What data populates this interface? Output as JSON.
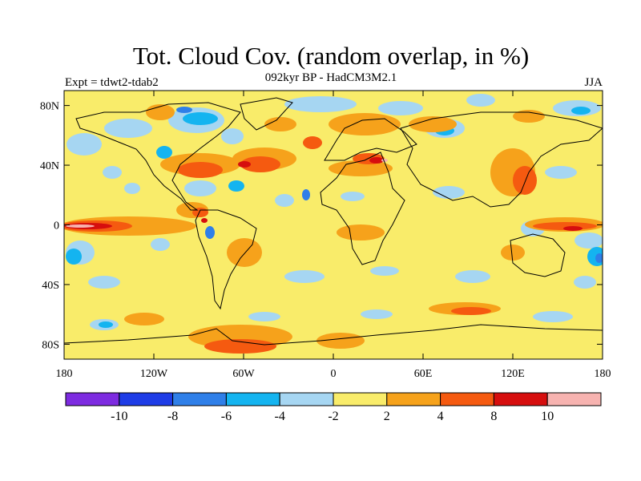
{
  "header": {
    "title": "Tot. Cloud Cov. (random overlap, in %)",
    "subtitle": "092kyr BP - HadCM3M2.1",
    "left_label": "Expt = tdwt2-tdab2",
    "right_label": "JJA"
  },
  "axes": {
    "lat_labels": [
      "80N",
      "40N",
      "0",
      "40S",
      "80S"
    ],
    "lat_values": [
      80,
      40,
      0,
      -40,
      -80
    ],
    "lon_labels": [
      "180",
      "120W",
      "60W",
      "0",
      "60E",
      "120E",
      "180"
    ],
    "lon_values": [
      -180,
      -120,
      -60,
      0,
      60,
      120,
      180
    ]
  },
  "colorbar": {
    "colors": [
      "#7d2be0",
      "#1e3ce6",
      "#2f7fe8",
      "#14b4f0",
      "#a6d6f2",
      "#f9ec6a",
      "#f6a21b",
      "#f55a10",
      "#d60e0e",
      "#f7b3b0"
    ],
    "labels": [
      "-10",
      "-8",
      "-6",
      "-4",
      "-2",
      "2",
      "4",
      "8",
      "10"
    ]
  },
  "map_colors": {
    "neutral": "#f9ec6a",
    "light_neg": "#a6d6f2",
    "neg": "#14b4f0",
    "mid_neg": "#2f7fe8",
    "strong_neg": "#1e3ce6",
    "pos": "#f6a21b",
    "mid_pos": "#f55a10",
    "strong_pos": "#d60e0e",
    "extreme_pos": "#f7b3b0"
  }
}
